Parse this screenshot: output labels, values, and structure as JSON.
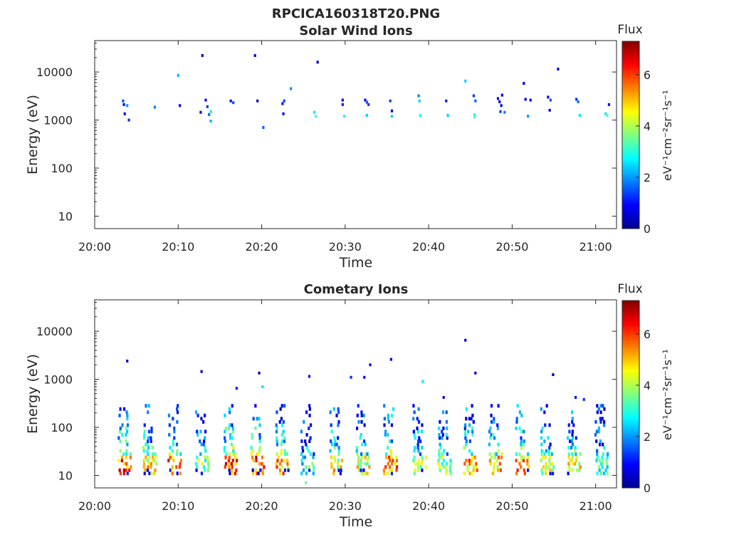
{
  "figure": {
    "title": "RPCICA160318T20.PNG"
  },
  "colors": {
    "axis": "#262626",
    "background": "#ffffff"
  },
  "chart_data": [
    {
      "type": "heatmap",
      "title": "Solar Wind Ions",
      "xlabel": "Time",
      "ylabel": "Energy (eV)",
      "x_ticks": [
        "20:00",
        "20:10",
        "20:20",
        "20:30",
        "20:40",
        "20:50",
        "21:00"
      ],
      "y_ticks": [
        "10",
        "100",
        "1000",
        "10000"
      ],
      "ylim": [
        5.5,
        45000
      ],
      "y_scale": "log",
      "xlim_minutes": [
        0,
        62.5
      ],
      "colorbar": {
        "label": "Flux",
        "units": "eV⁻¹cm⁻²sr⁻¹s⁻¹",
        "ticks": [
          "0",
          "2",
          "4",
          "6"
        ],
        "range": [
          0,
          7.3
        ],
        "colormap": "jet"
      },
      "points": [
        {
          "t": 3.4,
          "e": 2500,
          "v": 1.5
        },
        {
          "t": 3.5,
          "e": 2100,
          "v": 0.8
        },
        {
          "t": 3.6,
          "e": 1350,
          "v": 0.9
        },
        {
          "t": 3.9,
          "e": 2000,
          "v": 2.0
        },
        {
          "t": 4.1,
          "e": 1000,
          "v": 1.2
        },
        {
          "t": 7.2,
          "e": 1850,
          "v": 1.8
        },
        {
          "t": 10.0,
          "e": 8500,
          "v": 2.2
        },
        {
          "t": 10.2,
          "e": 2000,
          "v": 0.9
        },
        {
          "t": 12.7,
          "e": 1450,
          "v": 0.8
        },
        {
          "t": 12.9,
          "e": 22000,
          "v": 0.5
        },
        {
          "t": 13.3,
          "e": 2600,
          "v": 0.9
        },
        {
          "t": 13.5,
          "e": 1900,
          "v": 1.3
        },
        {
          "t": 13.7,
          "e": 1300,
          "v": 1.7
        },
        {
          "t": 13.9,
          "e": 1500,
          "v": 2.6
        },
        {
          "t": 13.9,
          "e": 950,
          "v": 2.2
        },
        {
          "t": 16.3,
          "e": 2500,
          "v": 1.0
        },
        {
          "t": 16.6,
          "e": 2300,
          "v": 1.5
        },
        {
          "t": 19.2,
          "e": 22000,
          "v": 0.6
        },
        {
          "t": 19.5,
          "e": 2500,
          "v": 0.6
        },
        {
          "t": 20.2,
          "e": 700,
          "v": 1.6
        },
        {
          "t": 22.5,
          "e": 2200,
          "v": 1.0
        },
        {
          "t": 22.7,
          "e": 2500,
          "v": 1.4
        },
        {
          "t": 22.6,
          "e": 1350,
          "v": 0.8
        },
        {
          "t": 23.5,
          "e": 4500,
          "v": 1.9
        },
        {
          "t": 26.3,
          "e": 1450,
          "v": 2.6
        },
        {
          "t": 26.5,
          "e": 1200,
          "v": 3.2
        },
        {
          "t": 26.7,
          "e": 16000,
          "v": 0.6
        },
        {
          "t": 29.7,
          "e": 2600,
          "v": 0.8
        },
        {
          "t": 29.7,
          "e": 2100,
          "v": 1.1
        },
        {
          "t": 29.9,
          "e": 1200,
          "v": 2.7
        },
        {
          "t": 32.4,
          "e": 2600,
          "v": 0.9
        },
        {
          "t": 32.6,
          "e": 2350,
          "v": 1.5
        },
        {
          "t": 32.8,
          "e": 2100,
          "v": 1.2
        },
        {
          "t": 32.6,
          "e": 1250,
          "v": 2.4
        },
        {
          "t": 35.4,
          "e": 2500,
          "v": 1.4
        },
        {
          "t": 35.6,
          "e": 1550,
          "v": 0.8
        },
        {
          "t": 35.6,
          "e": 1200,
          "v": 2.4
        },
        {
          "t": 38.8,
          "e": 3200,
          "v": 1.8
        },
        {
          "t": 38.9,
          "e": 2500,
          "v": 2.4
        },
        {
          "t": 39.0,
          "e": 1250,
          "v": 2.8
        },
        {
          "t": 42.1,
          "e": 2500,
          "v": 1.1
        },
        {
          "t": 42.3,
          "e": 1250,
          "v": 2.4
        },
        {
          "t": 44.4,
          "e": 6500,
          "v": 2.4
        },
        {
          "t": 45.4,
          "e": 3200,
          "v": 1.3
        },
        {
          "t": 45.6,
          "e": 2500,
          "v": 1.6
        },
        {
          "t": 45.5,
          "e": 1300,
          "v": 2.9
        },
        {
          "t": 45.5,
          "e": 1150,
          "v": 3.3
        },
        {
          "t": 48.3,
          "e": 2800,
          "v": 1.0
        },
        {
          "t": 48.5,
          "e": 2400,
          "v": 0.6
        },
        {
          "t": 48.7,
          "e": 2000,
          "v": 0.9
        },
        {
          "t": 48.8,
          "e": 3300,
          "v": 0.7
        },
        {
          "t": 48.6,
          "e": 1500,
          "v": 1.3
        },
        {
          "t": 49.1,
          "e": 1450,
          "v": 1.8
        },
        {
          "t": 51.4,
          "e": 5800,
          "v": 0.6
        },
        {
          "t": 51.6,
          "e": 2700,
          "v": 0.9
        },
        {
          "t": 51.9,
          "e": 1200,
          "v": 2.0
        },
        {
          "t": 52.2,
          "e": 2600,
          "v": 0.7
        },
        {
          "t": 54.3,
          "e": 3000,
          "v": 1.0
        },
        {
          "t": 54.6,
          "e": 2600,
          "v": 1.5
        },
        {
          "t": 54.5,
          "e": 1600,
          "v": 0.8
        },
        {
          "t": 55.5,
          "e": 11500,
          "v": 0.7
        },
        {
          "t": 57.7,
          "e": 2700,
          "v": 1.2
        },
        {
          "t": 57.9,
          "e": 2400,
          "v": 1.7
        },
        {
          "t": 58.1,
          "e": 1250,
          "v": 2.6
        },
        {
          "t": 61.2,
          "e": 1350,
          "v": 2.6
        },
        {
          "t": 61.4,
          "e": 1250,
          "v": 3.3
        },
        {
          "t": 61.6,
          "e": 2100,
          "v": 1.0
        }
      ]
    },
    {
      "type": "heatmap",
      "title": "Cometary Ions",
      "xlabel": "Time",
      "ylabel": "Energy (eV)",
      "x_ticks": [
        "20:00",
        "20:10",
        "20:20",
        "20:30",
        "20:40",
        "20:50",
        "21:00"
      ],
      "y_ticks": [
        "10",
        "100",
        "1000",
        "10000"
      ],
      "ylim": [
        5.5,
        45000
      ],
      "y_scale": "log",
      "xlim_minutes": [
        0,
        62.5
      ],
      "colorbar": {
        "label": "Flux",
        "units": "eV⁻¹cm⁻²sr⁻¹s⁻¹",
        "ticks": [
          "0",
          "2",
          "4",
          "6"
        ],
        "range": [
          0,
          7.3
        ],
        "colormap": "jet"
      },
      "burst_times": [
        3.6,
        6.6,
        9.6,
        12.9,
        16.3,
        19.5,
        22.5,
        25.5,
        28.9,
        32.1,
        35.4,
        38.9,
        41.9,
        45.0,
        48.0,
        51.2,
        54.2,
        57.4,
        60.7
      ],
      "burst_intensity": [
        1.0,
        0.8,
        0.95,
        0.55,
        1.0,
        1.0,
        0.9,
        0.45,
        0.75,
        0.7,
        0.95,
        0.6,
        0.6,
        0.85,
        0.8,
        0.85,
        0.6,
        0.75,
        0.45
      ],
      "high_energy_points": [
        {
          "t": 3.9,
          "e": 2400,
          "v": 0.6
        },
        {
          "t": 12.8,
          "e": 1450,
          "v": 0.5
        },
        {
          "t": 17.0,
          "e": 650,
          "v": 1.1
        },
        {
          "t": 19.7,
          "e": 1350,
          "v": 0.6
        },
        {
          "t": 20.1,
          "e": 700,
          "v": 2.5
        },
        {
          "t": 25.7,
          "e": 1150,
          "v": 0.9
        },
        {
          "t": 30.7,
          "e": 1100,
          "v": 1.2
        },
        {
          "t": 32.3,
          "e": 1100,
          "v": 0.9
        },
        {
          "t": 33.0,
          "e": 2000,
          "v": 0.9
        },
        {
          "t": 35.5,
          "e": 2600,
          "v": 0.7
        },
        {
          "t": 39.3,
          "e": 900,
          "v": 2.6
        },
        {
          "t": 41.8,
          "e": 420,
          "v": 0.7
        },
        {
          "t": 44.4,
          "e": 6500,
          "v": 0.6
        },
        {
          "t": 45.6,
          "e": 1350,
          "v": 0.6
        },
        {
          "t": 54.9,
          "e": 1250,
          "v": 0.6
        },
        {
          "t": 57.6,
          "e": 420,
          "v": 1.0
        },
        {
          "t": 58.6,
          "e": 380,
          "v": 1.2
        },
        {
          "t": 25.3,
          "e": 7,
          "v": 3.5
        }
      ]
    }
  ]
}
